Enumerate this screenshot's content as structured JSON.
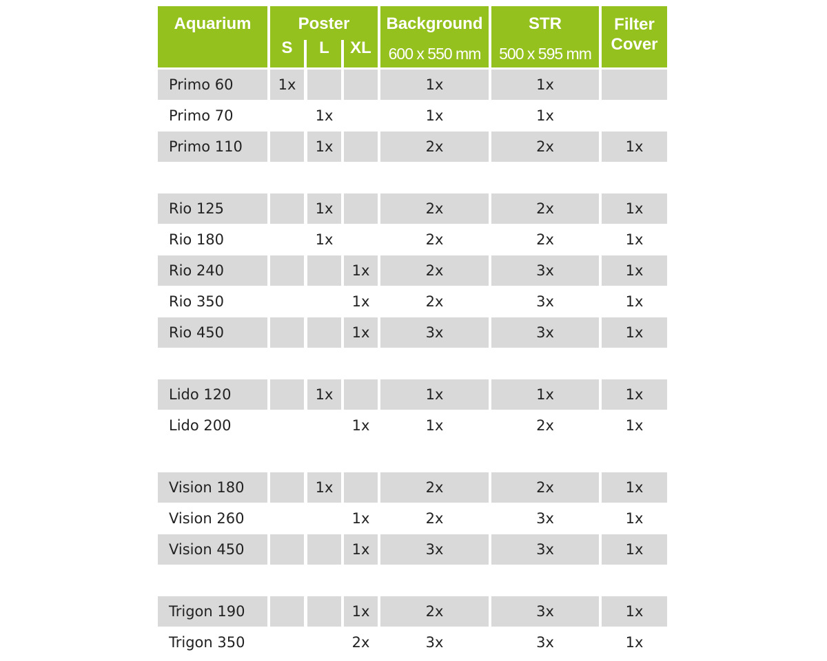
{
  "header": {
    "aquarium": "Aquarium",
    "poster": "Poster",
    "poster_s": "S",
    "poster_l": "L",
    "poster_xl": "XL",
    "background": "Background",
    "background_size": "600 x 550 mm",
    "str": "STR",
    "str_size": "500 x 595 mm",
    "filter_cover": "Filter Cover"
  },
  "colors": {
    "header_bg": "#95c11f",
    "shade": "#d9d9d9"
  },
  "groups": [
    {
      "rows": [
        {
          "name": "Primo 60",
          "s": "1x",
          "l": "",
          "xl": "",
          "background": "1x",
          "str": "1x",
          "filter": ""
        },
        {
          "name": "Primo 70",
          "s": "",
          "l": "1x",
          "xl": "",
          "background": "1x",
          "str": "1x",
          "filter": ""
        },
        {
          "name": "Primo 110",
          "s": "",
          "l": "1x",
          "xl": "",
          "background": "2x",
          "str": "2x",
          "filter": "1x"
        }
      ]
    },
    {
      "rows": [
        {
          "name": "Rio 125",
          "s": "",
          "l": "1x",
          "xl": "",
          "background": "2x",
          "str": "2x",
          "filter": "1x"
        },
        {
          "name": "Rio 180",
          "s": "",
          "l": "1x",
          "xl": "",
          "background": "2x",
          "str": "2x",
          "filter": "1x"
        },
        {
          "name": "Rio 240",
          "s": "",
          "l": "",
          "xl": "1x",
          "background": "2x",
          "str": "3x",
          "filter": "1x"
        },
        {
          "name": "Rio 350",
          "s": "",
          "l": "",
          "xl": "1x",
          "background": "2x",
          "str": "3x",
          "filter": "1x"
        },
        {
          "name": "Rio 450",
          "s": "",
          "l": "",
          "xl": "1x",
          "background": "3x",
          "str": "3x",
          "filter": "1x"
        }
      ]
    },
    {
      "rows": [
        {
          "name": "Lido 120",
          "s": "",
          "l": "1x",
          "xl": "",
          "background": "1x",
          "str": "1x",
          "filter": "1x"
        },
        {
          "name": "Lido 200",
          "s": "",
          "l": "",
          "xl": "1x",
          "background": "1x",
          "str": "2x",
          "filter": "1x"
        }
      ]
    },
    {
      "rows": [
        {
          "name": "Vision 180",
          "s": "",
          "l": "1x",
          "xl": "",
          "background": "2x",
          "str": "2x",
          "filter": "1x"
        },
        {
          "name": "Vision 260",
          "s": "",
          "l": "",
          "xl": "1x",
          "background": "2x",
          "str": "3x",
          "filter": "1x"
        },
        {
          "name": "Vision 450",
          "s": "",
          "l": "",
          "xl": "1x",
          "background": "3x",
          "str": "3x",
          "filter": "1x"
        }
      ]
    },
    {
      "rows": [
        {
          "name": "Trigon 190",
          "s": "",
          "l": "",
          "xl": "1x",
          "background": "2x",
          "str": "3x",
          "filter": "1x"
        },
        {
          "name": "Trigon 350",
          "s": "",
          "l": "",
          "xl": "2x",
          "background": "3x",
          "str": "3x",
          "filter": "1x"
        }
      ]
    }
  ]
}
